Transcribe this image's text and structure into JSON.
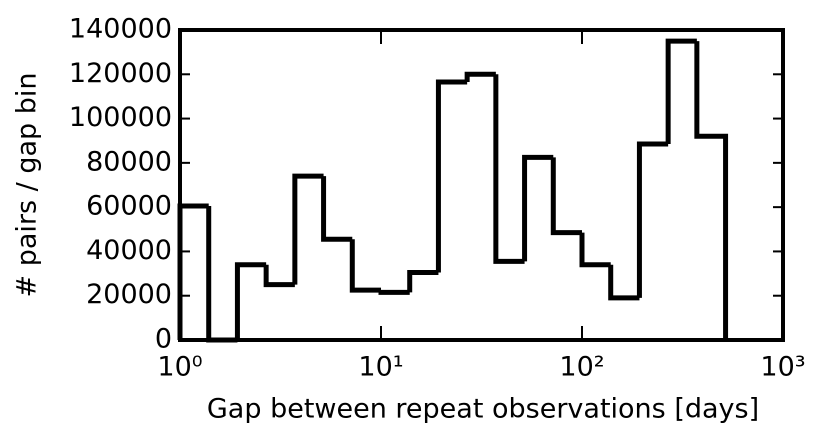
{
  "chart_data": {
    "type": "histogram",
    "xlabel": "Gap between repeat observations [days]",
    "ylabel": "# pairs / gap bin",
    "bins": [
      1,
      1.3895,
      1.9307,
      2.6827,
      3.7276,
      5.1795,
      7.1969,
      10,
      13.895,
      19.307,
      26.827,
      37.276,
      51.795,
      71.969,
      100,
      138.95,
      193.07,
      268.27,
      372.76,
      517.95
    ],
    "values": [
      60500,
      0,
      34000,
      25000,
      74000,
      45500,
      22500,
      21500,
      30500,
      116500,
      120000,
      35500,
      82500,
      48500,
      34000,
      19000,
      88500,
      135000,
      92000
    ],
    "color": "#000000",
    "xscale": "log",
    "xlim": [
      1,
      1000
    ],
    "xticks": [
      {
        "value": 1,
        "label": "10⁰"
      },
      {
        "value": 10,
        "label": "10¹"
      },
      {
        "value": 100,
        "label": "10²"
      },
      {
        "value": 1000,
        "label": "10³"
      }
    ],
    "ylim": [
      0,
      140000
    ],
    "yticks": [
      0,
      20000,
      40000,
      60000,
      80000,
      100000,
      120000,
      140000
    ],
    "grid": false
  }
}
